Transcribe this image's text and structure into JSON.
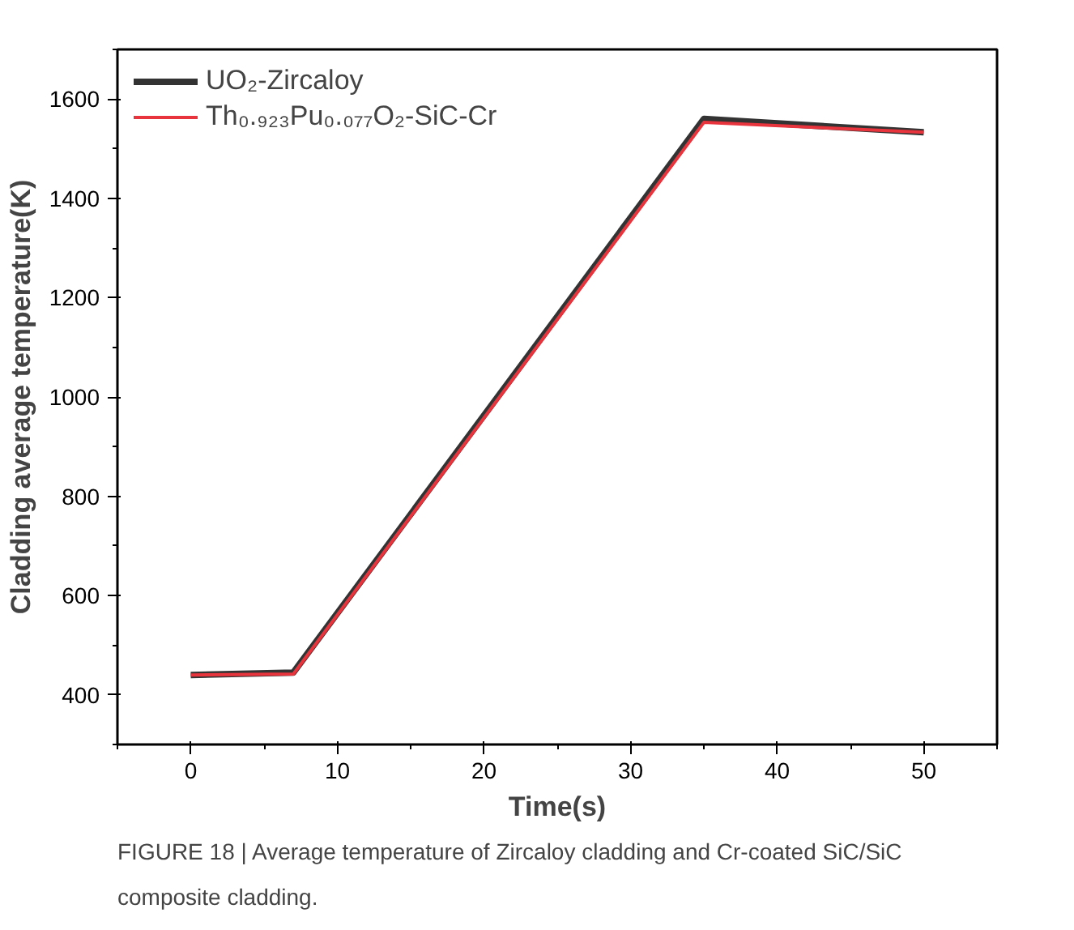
{
  "chart_data": {
    "type": "line",
    "xlabel": "Time(s)",
    "ylabel": "Cladding average temperature(K)",
    "xlim": [
      -5,
      55
    ],
    "xticks": [
      0,
      10,
      20,
      30,
      40,
      50
    ],
    "ylim": [
      300,
      1700
    ],
    "yticks": [
      400,
      600,
      800,
      1000,
      1200,
      1400,
      1600
    ],
    "grid": false,
    "legend": "top left",
    "line_style": "solid",
    "marker": "none",
    "series": [
      {
        "name": "UO₂-Zircaloy",
        "color": "#333333",
        "x": [
          0,
          7,
          35,
          50
        ],
        "values": [
          440,
          445,
          1560,
          1533
        ]
      },
      {
        "name": "Th₀.₉₂₃Pu₀.₀₇₇O₂-SiC-Cr",
        "color": "#e8343c",
        "x": [
          0,
          7,
          35,
          50
        ],
        "values": [
          440,
          442,
          1553,
          1533
        ]
      }
    ],
    "annotations": [
      "FIGURE 18 | Average temperature of Zircaloy cladding and Cr-coated SiC/SiC composite cladding."
    ]
  }
}
